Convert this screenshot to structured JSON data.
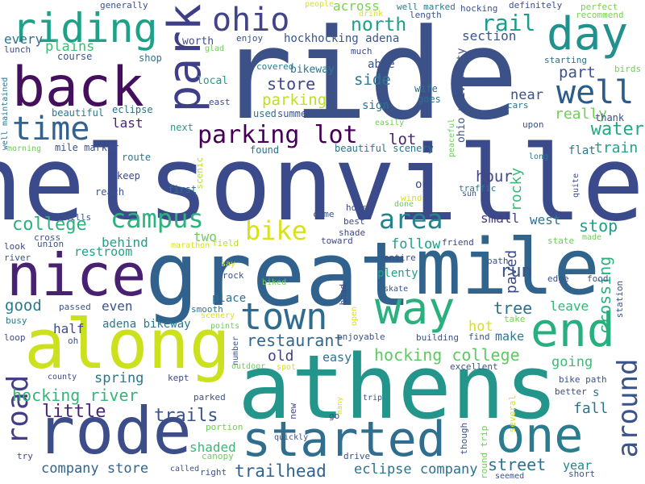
{
  "words": [
    {
      "text": "ride",
      "color": "#3b5188"
    },
    {
      "text": "nelsonville",
      "color": "#3a4a8a"
    },
    {
      "text": "athens",
      "color": "#23958b"
    },
    {
      "text": "great",
      "color": "#31628e"
    },
    {
      "text": "mile",
      "color": "#31648d"
    },
    {
      "text": "along",
      "color": "#cce11e"
    },
    {
      "text": "rode",
      "color": "#3d4d89"
    },
    {
      "text": "back",
      "color": "#440f5c"
    },
    {
      "text": "nice",
      "color": "#482173"
    },
    {
      "text": "way",
      "color": "#2ab07f"
    },
    {
      "text": "end",
      "color": "#29af7f"
    },
    {
      "text": "started",
      "color": "#2f6e8e"
    },
    {
      "text": "one",
      "color": "#2a7c8e"
    },
    {
      "text": "park",
      "color": "#3f3f89"
    },
    {
      "text": "day",
      "color": "#21918d"
    },
    {
      "text": "riding",
      "color": "#1fa187"
    },
    {
      "text": "time",
      "color": "#33628d"
    },
    {
      "text": "ohio",
      "color": "#414487"
    },
    {
      "text": "well",
      "color": "#2b5b8c"
    },
    {
      "text": "town",
      "color": "#2e6b8e"
    },
    {
      "text": "road",
      "color": "#433e85"
    },
    {
      "text": "around",
      "color": "#3a538b"
    },
    {
      "text": "area",
      "color": "#25838e"
    },
    {
      "text": "campus",
      "color": "#2db27d"
    },
    {
      "text": "bike",
      "color": "#d8e219"
    },
    {
      "text": "parking lot",
      "color": "#440154"
    },
    {
      "text": "rail",
      "color": "#1e9b8a"
    },
    {
      "text": "north",
      "color": "#1f9e89"
    },
    {
      "text": "college",
      "color": "#2db27d"
    },
    {
      "text": "water",
      "color": "#22a785"
    },
    {
      "text": "hocking river",
      "color": "#34b679"
    },
    {
      "text": "trails",
      "color": "#3a548c"
    },
    {
      "text": "little",
      "color": "#482677"
    },
    {
      "text": "trailhead",
      "color": "#33638d"
    },
    {
      "text": "company store",
      "color": "#33638d"
    },
    {
      "text": "eclipse company",
      "color": "#2c728e"
    },
    {
      "text": "street",
      "color": "#2c728e"
    },
    {
      "text": "hocking college",
      "color": "#5ec962"
    },
    {
      "text": "crossing",
      "color": "#2ab07f"
    },
    {
      "text": "restaurant",
      "color": "#31678e"
    },
    {
      "text": "store",
      "color": "#3f4788"
    },
    {
      "text": "parking",
      "color": "#bddf26"
    },
    {
      "text": "side",
      "color": "#2a788e"
    },
    {
      "text": "lot",
      "color": "#482475"
    },
    {
      "text": "part",
      "color": "#3b528b"
    },
    {
      "text": "last",
      "color": "#482677"
    },
    {
      "text": "really",
      "color": "#6ece58"
    },
    {
      "text": "train",
      "color": "#20a386"
    },
    {
      "text": "rocky",
      "color": "#38b977"
    },
    {
      "text": "hour",
      "color": "#404688"
    },
    {
      "text": "paved",
      "color": "#3e4989"
    },
    {
      "text": "run",
      "color": "#3b528b"
    },
    {
      "text": "stop",
      "color": "#1f9e89"
    },
    {
      "text": "follow",
      "color": "#1f9e89"
    },
    {
      "text": "small",
      "color": "#424086"
    },
    {
      "text": "west",
      "color": "#2c728e"
    },
    {
      "text": "behind",
      "color": "#1fa187"
    },
    {
      "text": "two",
      "color": "#6ece58"
    },
    {
      "text": "restroom",
      "color": "#1fa187"
    },
    {
      "text": "good",
      "color": "#2a788e"
    },
    {
      "text": "even",
      "color": "#3b528b"
    },
    {
      "text": "tree",
      "color": "#2c728e"
    },
    {
      "text": "leave",
      "color": "#35b779"
    },
    {
      "text": "old",
      "color": "#433e85"
    },
    {
      "text": "easy",
      "color": "#2c728e"
    },
    {
      "text": "going",
      "color": "#3dbc74"
    },
    {
      "text": "fall",
      "color": "#2c728e"
    },
    {
      "text": "spring",
      "color": "#2a788e"
    },
    {
      "text": "half",
      "color": "#3e4a89"
    },
    {
      "text": "hot",
      "color": "#d8e219"
    },
    {
      "text": "make",
      "color": "#2a788e"
    },
    {
      "text": "shaded",
      "color": "#38b977"
    },
    {
      "text": "year",
      "color": "#26828e"
    },
    {
      "text": "adena bikeway",
      "color": "#2a788e"
    },
    {
      "text": "plains",
      "color": "#3dbc74"
    },
    {
      "text": "every",
      "color": "#2c728e"
    },
    {
      "text": "section",
      "color": "#39568c"
    },
    {
      "text": "across",
      "color": "#7ad151"
    },
    {
      "text": "hockhocking adena",
      "color": "#39568c"
    },
    {
      "text": "near",
      "color": "#3b528b"
    },
    {
      "text": "plenty",
      "color": "#1fa187"
    },
    {
      "text": "place",
      "color": "#2c728e"
    },
    {
      "text": "worth",
      "color": "#3e4989"
    },
    {
      "text": "local",
      "color": "#1f9e89"
    },
    {
      "text": "bikeway",
      "color": "#2a788e"
    },
    {
      "text": "beautiful scenery",
      "color": "#2c728e"
    },
    {
      "text": "mile marker",
      "color": "#3b528b"
    },
    {
      "text": "found",
      "color": "#2c728e"
    },
    {
      "text": "ohio university",
      "color": "#3b528b"
    },
    {
      "text": "ou",
      "color": "#3e4a89"
    },
    {
      "text": "s",
      "color": "#2a788e"
    },
    {
      "text": "sign",
      "color": "#2c728e"
    },
    {
      "text": "able",
      "color": "#3b528b"
    },
    {
      "text": "flat",
      "color": "#2a788e"
    },
    {
      "text": "thank",
      "color": "#3e4989"
    },
    {
      "text": "course",
      "color": "#39568c"
    },
    {
      "text": "shop",
      "color": "#2c728e"
    },
    {
      "text": "beautiful",
      "color": "#2a788e"
    },
    {
      "text": "eclipse",
      "color": "#2c728e"
    },
    {
      "text": "next",
      "color": "#1fa187"
    },
    {
      "text": "route",
      "color": "#2a788e"
    },
    {
      "text": "keep",
      "color": "#3e4989"
    },
    {
      "text": "first",
      "color": "#2c728e"
    },
    {
      "text": "reach",
      "color": "#3b528b"
    },
    {
      "text": "wife",
      "color": "#2c728e"
    },
    {
      "text": "goes",
      "color": "#2c728e"
    },
    {
      "text": "used",
      "color": "#2c728e"
    },
    {
      "text": "summer",
      "color": "#3b528b"
    },
    {
      "text": "covered",
      "color": "#2a788e"
    },
    {
      "text": "starting",
      "color": "#2c728e"
    },
    {
      "text": "upon",
      "color": "#3b528b"
    },
    {
      "text": "much",
      "color": "#3e4989"
    },
    {
      "text": "enjoy",
      "color": "#3b528b"
    },
    {
      "text": "lunch",
      "color": "#3e4989"
    },
    {
      "text": "generally",
      "color": "#3b528b"
    },
    {
      "text": "people",
      "color": "#d8e219"
    },
    {
      "text": "drink",
      "color": "#d8e219"
    },
    {
      "text": "well marked",
      "color": "#2a788e"
    },
    {
      "text": "length",
      "color": "#3b528b"
    },
    {
      "text": "hocking",
      "color": "#3b528b"
    },
    {
      "text": "definitely",
      "color": "#3b528b"
    },
    {
      "text": "perfect",
      "color": "#7ad151"
    },
    {
      "text": "recommend",
      "color": "#7ad151"
    },
    {
      "text": "birds",
      "color": "#6ece58"
    },
    {
      "text": "glad",
      "color": "#6ece58"
    },
    {
      "text": "cars",
      "color": "#2a788e"
    },
    {
      "text": "east",
      "color": "#3e4989"
    },
    {
      "text": "well maintained",
      "color": "#2a788e"
    },
    {
      "text": "morning",
      "color": "#6ece58"
    },
    {
      "text": "easily",
      "color": "#6ece58"
    },
    {
      "text": "peaceful",
      "color": "#6ece58"
    },
    {
      "text": "long",
      "color": "#2a788e"
    },
    {
      "text": "quite",
      "color": "#3e4989"
    },
    {
      "text": "scenic",
      "color": "#b5de2b"
    },
    {
      "text": "traffic",
      "color": "#2a788e"
    },
    {
      "text": "sun",
      "color": "#3b528b"
    },
    {
      "text": "wind",
      "color": "#d8e219"
    },
    {
      "text": "house",
      "color": "#3e4989"
    },
    {
      "text": "done",
      "color": "#6ece58"
    },
    {
      "text": "come",
      "color": "#3b528b"
    },
    {
      "text": "best",
      "color": "#3e4989"
    },
    {
      "text": "shade",
      "color": "#3e4989"
    },
    {
      "text": "toward",
      "color": "#3e4989"
    },
    {
      "text": "hills",
      "color": "#3b528b"
    },
    {
      "text": "cross",
      "color": "#3b528b"
    },
    {
      "text": "union",
      "color": "#3b528b"
    },
    {
      "text": "look",
      "color": "#3e4989"
    },
    {
      "text": "river",
      "color": "#3b528b"
    },
    {
      "text": "marathon",
      "color": "#d8e219"
    },
    {
      "text": "field",
      "color": "#b5de2b"
    },
    {
      "text": "friend",
      "color": "#3e4989"
    },
    {
      "text": "entire",
      "color": "#3e4989"
    },
    {
      "text": "path",
      "color": "#3b528b"
    },
    {
      "text": "state",
      "color": "#6ece58"
    },
    {
      "text": "made",
      "color": "#6ece58"
    },
    {
      "text": "station",
      "color": "#3b528b"
    },
    {
      "text": "edge",
      "color": "#3b528b"
    },
    {
      "text": "food",
      "color": "#3b528b"
    },
    {
      "text": "say",
      "color": "#d8e219"
    },
    {
      "text": "rock",
      "color": "#3b528b"
    },
    {
      "text": "biked",
      "color": "#6ece58"
    },
    {
      "text": "head",
      "color": "#3e4989"
    },
    {
      "text": "skate",
      "color": "#3b528b"
    },
    {
      "text": "smooth",
      "color": "#2a788e"
    },
    {
      "text": "scenery",
      "color": "#d8e219"
    },
    {
      "text": "passed",
      "color": "#3b528b"
    },
    {
      "text": "busy",
      "color": "#2a788e"
    },
    {
      "text": "points",
      "color": "#6ece58"
    },
    {
      "text": "open",
      "color": "#d8e219"
    },
    {
      "text": "enjoyable",
      "color": "#3b528b"
    },
    {
      "text": "building",
      "color": "#3b528b"
    },
    {
      "text": "find",
      "color": "#3b528b"
    },
    {
      "text": "take",
      "color": "#7ad151"
    },
    {
      "text": "loop",
      "color": "#3e4989"
    },
    {
      "text": "oh",
      "color": "#3b528b"
    },
    {
      "text": "number",
      "color": "#3b528b"
    },
    {
      "text": "outdoor",
      "color": "#6ece58"
    },
    {
      "text": "spot",
      "color": "#d8e219"
    },
    {
      "text": "excellent",
      "color": "#3b528b"
    },
    {
      "text": "bike path",
      "color": "#3b528b"
    },
    {
      "text": "better",
      "color": "#3e4989"
    },
    {
      "text": "county",
      "color": "#3e4989"
    },
    {
      "text": "kept",
      "color": "#3e4989"
    },
    {
      "text": "parked",
      "color": "#3b528b"
    },
    {
      "text": "many",
      "color": "#d8e219"
    },
    {
      "text": "trip",
      "color": "#3b528b"
    },
    {
      "text": "several",
      "color": "#d8e219"
    },
    {
      "text": "portion",
      "color": "#6ece58"
    },
    {
      "text": "new",
      "color": "#3e4989"
    },
    {
      "text": "go",
      "color": "#3e4989"
    },
    {
      "text": "though",
      "color": "#3b528b"
    },
    {
      "text": "round trip",
      "color": "#6ece58"
    },
    {
      "text": "quickly",
      "color": "#3b528b"
    },
    {
      "text": "canopy",
      "color": "#6ece58"
    },
    {
      "text": "drive",
      "color": "#3b528b"
    },
    {
      "text": "try",
      "color": "#3e4989"
    },
    {
      "text": "called",
      "color": "#3b528b"
    },
    {
      "text": "right",
      "color": "#3b528b"
    },
    {
      "text": "seemed",
      "color": "#3b528b"
    },
    {
      "text": "short",
      "color": "#3b528b"
    }
  ]
}
